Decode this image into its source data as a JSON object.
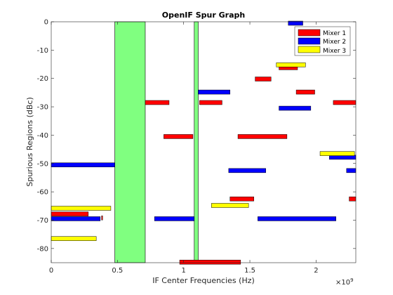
{
  "chart_data": {
    "type": "bar",
    "title": "OpenIF Spur Graph",
    "xlabel": "IF Center Frequencies (Hz)",
    "ylabel": "Spurious Regions (dBc)",
    "x_exponent_label": "×10⁹",
    "x_exponent_base": "×10",
    "x_exponent_power": "9",
    "xlim": [
      0,
      2.3
    ],
    "ylim": [
      -85,
      0
    ],
    "x_tick_values": [
      0,
      0.5,
      1,
      1.5,
      2
    ],
    "x_ticks": [
      "0",
      "0.5",
      "1",
      "1.5",
      "2"
    ],
    "y_tick_values": [
      0,
      -10,
      -20,
      -30,
      -40,
      -50,
      -60,
      -70,
      -80
    ],
    "y_ticks": [
      "0",
      "-10",
      "-20",
      "-30",
      "-40",
      "-50",
      "-60",
      "-70",
      "-80"
    ],
    "grid": false,
    "legend_position": "top-right",
    "colors": {
      "mixer1": "#ff0000",
      "mixer2": "#0000ff",
      "mixer3": "#ffff00",
      "clear_region": "#80ff80"
    },
    "clear_regions": [
      {
        "x0": 0.48,
        "x1": 0.71
      },
      {
        "x0": 1.08,
        "x1": 1.11
      }
    ],
    "series": [
      {
        "name": "Mixer 1",
        "bars": [
          {
            "x0": 0.0,
            "x1": 0.28,
            "y": -67.8
          },
          {
            "x0": 0.38,
            "x1": 0.38,
            "y": -69.2
          },
          {
            "x0": 0.71,
            "x1": 0.89,
            "y": -28.5
          },
          {
            "x0": 0.85,
            "x1": 1.07,
            "y": -40.5
          },
          {
            "x0": 1.12,
            "x1": 1.29,
            "y": -28.5
          },
          {
            "x0": 1.41,
            "x1": 1.78,
            "y": -40.5
          },
          {
            "x0": 1.35,
            "x1": 1.53,
            "y": -62.5
          },
          {
            "x0": 1.54,
            "x1": 1.66,
            "y": -20.2
          },
          {
            "x0": 1.72,
            "x1": 1.86,
            "y": -16.2
          },
          {
            "x0": 1.85,
            "x1": 1.99,
            "y": -24.8
          },
          {
            "x0": 2.13,
            "x1": 2.3,
            "y": -28.5
          },
          {
            "x0": 2.25,
            "x1": 2.3,
            "y": -62.5
          },
          {
            "x0": 0.97,
            "x1": 1.43,
            "y": -84.8
          }
        ]
      },
      {
        "name": "Mixer 2",
        "bars": [
          {
            "x0": 0.0,
            "x1": 0.48,
            "y": -50.5
          },
          {
            "x0": 0.0,
            "x1": 0.37,
            "y": -69.5
          },
          {
            "x0": 0.78,
            "x1": 1.08,
            "y": -69.5
          },
          {
            "x0": 1.11,
            "x1": 1.35,
            "y": -24.8
          },
          {
            "x0": 1.34,
            "x1": 1.62,
            "y": -52.5
          },
          {
            "x0": 1.56,
            "x1": 2.15,
            "y": -69.5
          },
          {
            "x0": 1.72,
            "x1": 1.96,
            "y": -30.5
          },
          {
            "x0": 1.79,
            "x1": 1.9,
            "y": -0.5
          },
          {
            "x0": 2.1,
            "x1": 2.3,
            "y": -47.8
          },
          {
            "x0": 2.23,
            "x1": 2.3,
            "y": -52.5
          }
        ]
      },
      {
        "name": "Mixer 3",
        "bars": [
          {
            "x0": 0.0,
            "x1": 0.45,
            "y": -65.8
          },
          {
            "x0": 0.0,
            "x1": 0.34,
            "y": -76.5
          },
          {
            "x0": 1.21,
            "x1": 1.49,
            "y": -64.8
          },
          {
            "x0": 1.7,
            "x1": 1.92,
            "y": -15.2
          },
          {
            "x0": 2.03,
            "x1": 2.29,
            "y": -46.5
          }
        ]
      }
    ]
  }
}
